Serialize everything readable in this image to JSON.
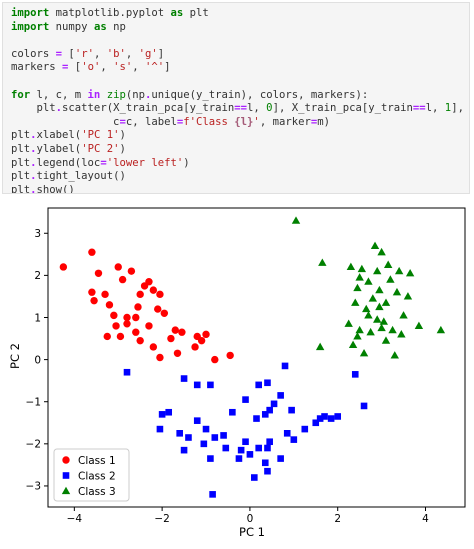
{
  "code_cell": {
    "lines": [
      [
        {
          "t": "import",
          "c": "kw"
        },
        {
          "t": " matplotlib.pyplot ",
          "c": "plain"
        },
        {
          "t": "as",
          "c": "kw"
        },
        {
          "t": " plt",
          "c": "plain"
        }
      ],
      [
        {
          "t": "import",
          "c": "kw"
        },
        {
          "t": " numpy ",
          "c": "plain"
        },
        {
          "t": "as",
          "c": "kw"
        },
        {
          "t": " np",
          "c": "plain"
        }
      ],
      [],
      [
        {
          "t": "colors ",
          "c": "plain"
        },
        {
          "t": "=",
          "c": "op"
        },
        {
          "t": " [",
          "c": "plain"
        },
        {
          "t": "'r'",
          "c": "str"
        },
        {
          "t": ", ",
          "c": "plain"
        },
        {
          "t": "'b'",
          "c": "str"
        },
        {
          "t": ", ",
          "c": "plain"
        },
        {
          "t": "'g'",
          "c": "str"
        },
        {
          "t": "]",
          "c": "plain"
        }
      ],
      [
        {
          "t": "markers ",
          "c": "plain"
        },
        {
          "t": "=",
          "c": "op"
        },
        {
          "t": " [",
          "c": "plain"
        },
        {
          "t": "'o'",
          "c": "str"
        },
        {
          "t": ", ",
          "c": "plain"
        },
        {
          "t": "'s'",
          "c": "str"
        },
        {
          "t": ", ",
          "c": "plain"
        },
        {
          "t": "'^'",
          "c": "str"
        },
        {
          "t": "]",
          "c": "plain"
        }
      ],
      [],
      [
        {
          "t": "for",
          "c": "kw"
        },
        {
          "t": " l, c, m ",
          "c": "plain"
        },
        {
          "t": "in",
          "c": "op"
        },
        {
          "t": " ",
          "c": "plain"
        },
        {
          "t": "zip",
          "c": "builtin"
        },
        {
          "t": "(np",
          "c": "plain"
        },
        {
          "t": ".",
          "c": "op"
        },
        {
          "t": "unique",
          "c": "plain"
        },
        {
          "t": "(y_train), colors, markers):",
          "c": "plain"
        }
      ],
      [
        {
          "t": "    plt",
          "c": "plain"
        },
        {
          "t": ".",
          "c": "op"
        },
        {
          "t": "scatter",
          "c": "plain"
        },
        {
          "t": "(X_train_pca[y_train",
          "c": "plain"
        },
        {
          "t": "==",
          "c": "op"
        },
        {
          "t": "l, ",
          "c": "plain"
        },
        {
          "t": "0",
          "c": "num"
        },
        {
          "t": "], X_train_pca[y_train",
          "c": "plain"
        },
        {
          "t": "==",
          "c": "op"
        },
        {
          "t": "l, ",
          "c": "plain"
        },
        {
          "t": "1",
          "c": "num"
        },
        {
          "t": "],",
          "c": "plain"
        }
      ],
      [
        {
          "t": "                c",
          "c": "plain"
        },
        {
          "t": "=",
          "c": "op"
        },
        {
          "t": "c, label",
          "c": "plain"
        },
        {
          "t": "=",
          "c": "op"
        },
        {
          "t": "f'Class ",
          "c": "fstr"
        },
        {
          "t": "{l}",
          "c": "interp"
        },
        {
          "t": "'",
          "c": "fstr"
        },
        {
          "t": ", marker",
          "c": "plain"
        },
        {
          "t": "=",
          "c": "op"
        },
        {
          "t": "m)",
          "c": "plain"
        }
      ],
      [
        {
          "t": "plt",
          "c": "plain"
        },
        {
          "t": ".",
          "c": "op"
        },
        {
          "t": "xlabel(",
          "c": "plain"
        },
        {
          "t": "'PC 1'",
          "c": "str"
        },
        {
          "t": ")",
          "c": "plain"
        }
      ],
      [
        {
          "t": "plt",
          "c": "plain"
        },
        {
          "t": ".",
          "c": "op"
        },
        {
          "t": "ylabel(",
          "c": "plain"
        },
        {
          "t": "'PC 2'",
          "c": "str"
        },
        {
          "t": ")",
          "c": "plain"
        }
      ],
      [
        {
          "t": "plt",
          "c": "plain"
        },
        {
          "t": ".",
          "c": "op"
        },
        {
          "t": "legend(loc",
          "c": "plain"
        },
        {
          "t": "=",
          "c": "op"
        },
        {
          "t": "'lower left'",
          "c": "str"
        },
        {
          "t": ")",
          "c": "plain"
        }
      ],
      [
        {
          "t": "plt",
          "c": "plain"
        },
        {
          "t": ".",
          "c": "op"
        },
        {
          "t": "tight_layout()",
          "c": "plain"
        }
      ],
      [
        {
          "t": "plt",
          "c": "plain"
        },
        {
          "t": ".",
          "c": "op"
        },
        {
          "t": "show()",
          "c": "plain"
        }
      ]
    ]
  },
  "chart_data": {
    "type": "scatter",
    "title": "",
    "xlabel": "PC 1",
    "ylabel": "PC 2",
    "xlim": [
      -4.6,
      4.9
    ],
    "ylim": [
      -3.5,
      3.6
    ],
    "x_ticks": [
      -4,
      -2,
      0,
      2,
      4
    ],
    "y_ticks": [
      -3,
      -2,
      -1,
      0,
      1,
      2,
      3
    ],
    "grid": false,
    "legend_position": "lower left",
    "series": [
      {
        "name": "Class 1",
        "color": "#ff0000",
        "marker": "circle",
        "points": [
          [
            -4.25,
            2.2
          ],
          [
            -3.6,
            2.55
          ],
          [
            -3.45,
            2.05
          ],
          [
            -3.3,
            1.55
          ],
          [
            -3.2,
            1.3
          ],
          [
            -3.55,
            1.4
          ],
          [
            -3.6,
            1.6
          ],
          [
            -3.0,
            2.2
          ],
          [
            -2.9,
            1.9
          ],
          [
            -2.7,
            2.1
          ],
          [
            -2.5,
            1.55
          ],
          [
            -2.4,
            1.75
          ],
          [
            -2.55,
            1.25
          ],
          [
            -3.1,
            1.05
          ],
          [
            -2.8,
            1.0
          ],
          [
            -2.6,
            1.0
          ],
          [
            -2.2,
            1.65
          ],
          [
            -2.3,
            1.85
          ],
          [
            -2.05,
            1.55
          ],
          [
            -2.1,
            1.2
          ],
          [
            -1.95,
            1.1
          ],
          [
            -2.3,
            0.8
          ],
          [
            -2.95,
            0.55
          ],
          [
            -2.8,
            0.85
          ],
          [
            -3.25,
            0.55
          ],
          [
            -2.6,
            0.65
          ],
          [
            -2.5,
            0.45
          ],
          [
            -2.2,
            0.3
          ],
          [
            -2.05,
            0.05
          ],
          [
            -1.7,
            0.7
          ],
          [
            -1.55,
            0.65
          ],
          [
            -1.2,
            0.55
          ],
          [
            -1.1,
            0.45
          ],
          [
            -1.0,
            0.6
          ],
          [
            -1.65,
            0.15
          ],
          [
            -1.25,
            0.3
          ],
          [
            -0.8,
            0.0
          ],
          [
            -0.45,
            0.1
          ],
          [
            -3.05,
            0.8
          ],
          [
            -1.8,
            0.5
          ]
        ]
      },
      {
        "name": "Class 2",
        "color": "#0000ff",
        "marker": "square",
        "points": [
          [
            -2.8,
            -0.3
          ],
          [
            -1.5,
            -0.45
          ],
          [
            -1.2,
            -0.6
          ],
          [
            -0.9,
            -0.6
          ],
          [
            -2.0,
            -1.3
          ],
          [
            -1.85,
            -1.25
          ],
          [
            -2.05,
            -1.65
          ],
          [
            -1.6,
            -1.75
          ],
          [
            -1.4,
            -1.85
          ],
          [
            -1.2,
            -1.45
          ],
          [
            -1.0,
            -1.65
          ],
          [
            -1.05,
            -2.0
          ],
          [
            -1.5,
            -2.15
          ],
          [
            -0.8,
            -1.85
          ],
          [
            -0.9,
            -2.35
          ],
          [
            -0.4,
            -1.25
          ],
          [
            -0.1,
            -1.95
          ],
          [
            -0.2,
            -2.15
          ],
          [
            0.0,
            -2.25
          ],
          [
            0.2,
            -2.1
          ],
          [
            0.4,
            -2.1
          ],
          [
            0.45,
            -1.95
          ],
          [
            0.35,
            -2.45
          ],
          [
            0.7,
            -2.35
          ],
          [
            0.4,
            -2.65
          ],
          [
            0.35,
            -1.3
          ],
          [
            0.55,
            -1.05
          ],
          [
            0.7,
            -0.85
          ],
          [
            0.95,
            -1.2
          ],
          [
            0.85,
            -1.75
          ],
          [
            1.0,
            -1.9
          ],
          [
            0.2,
            -0.6
          ],
          [
            0.4,
            -0.55
          ],
          [
            -0.1,
            -0.95
          ],
          [
            0.15,
            -1.4
          ],
          [
            0.8,
            -0.15
          ],
          [
            1.25,
            -1.65
          ],
          [
            1.5,
            -1.5
          ],
          [
            1.6,
            -1.4
          ],
          [
            1.7,
            -1.35
          ],
          [
            1.85,
            -1.4
          ],
          [
            2.0,
            -1.35
          ],
          [
            2.6,
            -1.1
          ],
          [
            2.4,
            -0.35
          ],
          [
            0.45,
            -1.2
          ],
          [
            -0.6,
            -1.8
          ],
          [
            -0.85,
            -3.2
          ],
          [
            0.1,
            -2.8
          ],
          [
            -0.25,
            -2.35
          ],
          [
            -0.55,
            -2.1
          ]
        ]
      },
      {
        "name": "Class 3",
        "color": "#008000",
        "marker": "triangle",
        "points": [
          [
            1.05,
            3.3
          ],
          [
            1.6,
            0.3
          ],
          [
            1.65,
            2.3
          ],
          [
            2.25,
            0.85
          ],
          [
            2.35,
            0.35
          ],
          [
            2.4,
            1.35
          ],
          [
            2.45,
            1.7
          ],
          [
            2.5,
            1.95
          ],
          [
            2.5,
            0.7
          ],
          [
            2.55,
            2.15
          ],
          [
            2.6,
            0.15
          ],
          [
            2.7,
            1.85
          ],
          [
            2.7,
            1.05
          ],
          [
            2.75,
            0.65
          ],
          [
            2.8,
            1.45
          ],
          [
            2.85,
            2.7
          ],
          [
            2.9,
            2.1
          ],
          [
            2.9,
            0.95
          ],
          [
            2.95,
            1.65
          ],
          [
            3.0,
            2.55
          ],
          [
            3.05,
            0.9
          ],
          [
            3.1,
            1.35
          ],
          [
            3.1,
            0.45
          ],
          [
            3.15,
            2.25
          ],
          [
            3.2,
            1.9
          ],
          [
            3.25,
            0.7
          ],
          [
            3.3,
            0.1
          ],
          [
            3.4,
            2.1
          ],
          [
            3.45,
            0.6
          ],
          [
            3.5,
            1.05
          ],
          [
            3.6,
            1.5
          ],
          [
            3.65,
            2.05
          ],
          [
            3.85,
            0.8
          ],
          [
            4.35,
            0.7
          ],
          [
            2.3,
            2.2
          ],
          [
            2.45,
            0.55
          ],
          [
            2.95,
            1.25
          ],
          [
            3.0,
            0.75
          ],
          [
            2.65,
            1.2
          ],
          [
            3.35,
            1.6
          ]
        ]
      }
    ]
  }
}
